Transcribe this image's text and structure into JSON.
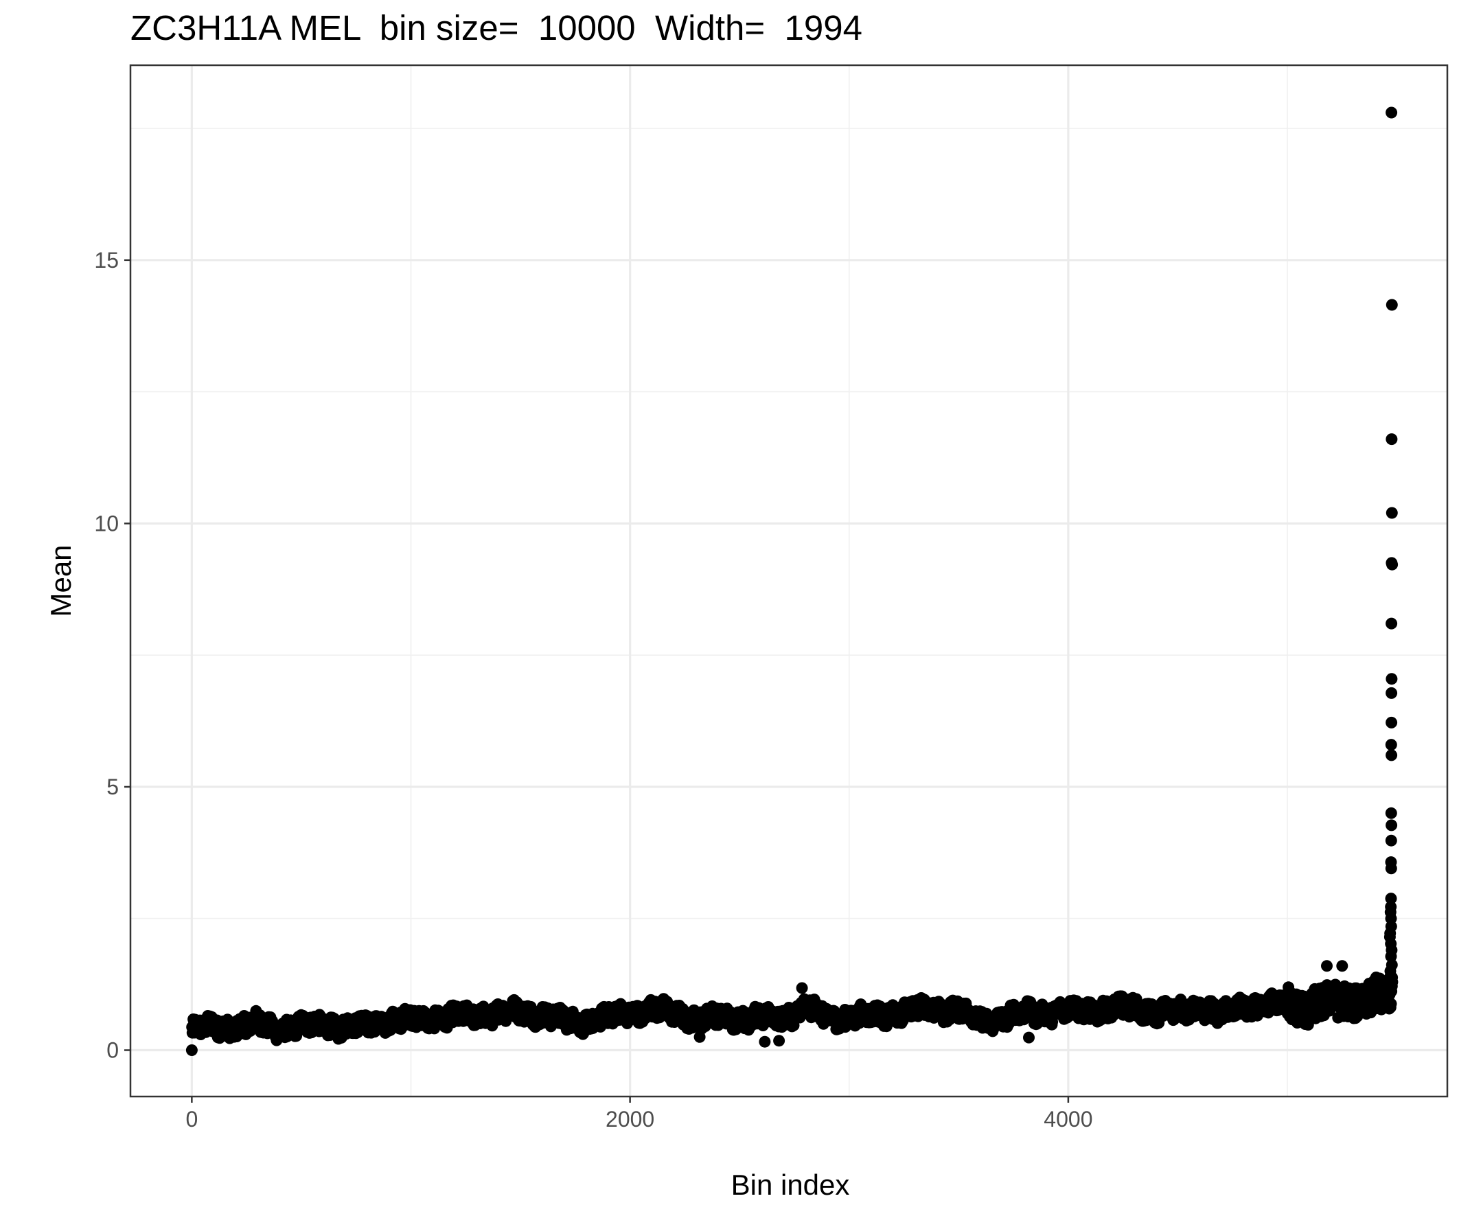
{
  "chart_data": {
    "type": "scatter",
    "title": "ZC3H11A MEL  bin size=  10000  Width=  1994",
    "xlabel": "Bin index",
    "ylabel": "Mean",
    "xlim": [
      -280,
      5730
    ],
    "ylim": [
      -0.88,
      18.7
    ],
    "x_ticks": [
      0,
      2000,
      4000
    ],
    "x_tick_labels": [
      "0",
      "2000",
      "4000"
    ],
    "x_minor_ticks": [
      1000,
      3000,
      5000
    ],
    "y_ticks": [
      0,
      5,
      10,
      15
    ],
    "y_tick_labels": [
      "0",
      "5",
      "10",
      "15"
    ],
    "y_minor_ticks": [
      2.5,
      7.5,
      12.5,
      17.5
    ],
    "grid": true,
    "legend": "none",
    "point_color": "#000000",
    "n_bins": 5480,
    "baseline_profile": [
      [
        0,
        0.38
      ],
      [
        100,
        0.45
      ],
      [
        200,
        0.44
      ],
      [
        300,
        0.5
      ],
      [
        400,
        0.4
      ],
      [
        500,
        0.45
      ],
      [
        600,
        0.5
      ],
      [
        700,
        0.42
      ],
      [
        800,
        0.5
      ],
      [
        900,
        0.55
      ],
      [
        1000,
        0.58
      ],
      [
        1100,
        0.62
      ],
      [
        1200,
        0.62
      ],
      [
        1300,
        0.67
      ],
      [
        1400,
        0.7
      ],
      [
        1500,
        0.73
      ],
      [
        1600,
        0.68
      ],
      [
        1700,
        0.55
      ],
      [
        1800,
        0.55
      ],
      [
        1900,
        0.62
      ],
      [
        2000,
        0.72
      ],
      [
        2100,
        0.77
      ],
      [
        2200,
        0.7
      ],
      [
        2300,
        0.6
      ],
      [
        2400,
        0.62
      ],
      [
        2500,
        0.62
      ],
      [
        2600,
        0.6
      ],
      [
        2700,
        0.62
      ],
      [
        2800,
        0.82
      ],
      [
        2900,
        0.62
      ],
      [
        3000,
        0.62
      ],
      [
        3100,
        0.65
      ],
      [
        3200,
        0.7
      ],
      [
        3300,
        0.77
      ],
      [
        3400,
        0.77
      ],
      [
        3500,
        0.77
      ],
      [
        3600,
        0.55
      ],
      [
        3700,
        0.62
      ],
      [
        3800,
        0.7
      ],
      [
        3900,
        0.72
      ],
      [
        4000,
        0.75
      ],
      [
        4100,
        0.75
      ],
      [
        4200,
        0.78
      ],
      [
        4300,
        0.8
      ],
      [
        4400,
        0.72
      ],
      [
        4500,
        0.72
      ],
      [
        4600,
        0.82
      ],
      [
        4700,
        0.65
      ],
      [
        4800,
        0.85
      ],
      [
        4900,
        0.8
      ],
      [
        5000,
        0.92
      ],
      [
        5100,
        0.78
      ],
      [
        5200,
        0.95
      ],
      [
        5300,
        0.95
      ],
      [
        5400,
        1.0
      ],
      [
        5450,
        1.05
      ],
      [
        5480,
        1.1
      ]
    ],
    "noise_amplitude": 0.17,
    "outliers": [
      {
        "x": 0,
        "y": 0.0
      },
      {
        "x": 2615,
        "y": 0.16
      },
      {
        "x": 2680,
        "y": 0.18
      },
      {
        "x": 2318,
        "y": 0.25
      },
      {
        "x": 3820,
        "y": 0.24
      },
      {
        "x": 2785,
        "y": 1.18
      },
      {
        "x": 5180,
        "y": 1.6
      },
      {
        "x": 5250,
        "y": 1.6
      },
      {
        "x": 5475,
        "y": 17.8
      },
      {
        "x": 5477,
        "y": 14.15
      },
      {
        "x": 5476,
        "y": 11.6
      },
      {
        "x": 5477,
        "y": 10.2
      },
      {
        "x": 5476,
        "y": 9.25
      },
      {
        "x": 5478,
        "y": 9.22
      },
      {
        "x": 5475,
        "y": 8.1
      },
      {
        "x": 5476,
        "y": 7.05
      },
      {
        "x": 5475,
        "y": 6.78
      },
      {
        "x": 5475,
        "y": 6.22
      },
      {
        "x": 5474,
        "y": 5.8
      },
      {
        "x": 5475,
        "y": 5.6
      },
      {
        "x": 5474,
        "y": 4.5
      },
      {
        "x": 5475,
        "y": 4.27
      },
      {
        "x": 5474,
        "y": 3.98
      },
      {
        "x": 5473,
        "y": 3.57
      },
      {
        "x": 5474,
        "y": 3.45
      },
      {
        "x": 5473,
        "y": 2.88
      },
      {
        "x": 5472,
        "y": 2.72
      },
      {
        "x": 5471,
        "y": 2.62
      },
      {
        "x": 5473,
        "y": 2.5
      },
      {
        "x": 5474,
        "y": 2.35
      },
      {
        "x": 5469,
        "y": 2.22
      },
      {
        "x": 5468,
        "y": 2.15
      },
      {
        "x": 5472,
        "y": 2.02
      },
      {
        "x": 5476,
        "y": 1.9
      },
      {
        "x": 5473,
        "y": 1.78
      },
      {
        "x": 5477,
        "y": 1.62
      },
      {
        "x": 5470,
        "y": 1.5
      },
      {
        "x": 5478,
        "y": 1.38
      },
      {
        "x": 5472,
        "y": 1.25
      },
      {
        "x": 5475,
        "y": 1.12
      }
    ]
  }
}
